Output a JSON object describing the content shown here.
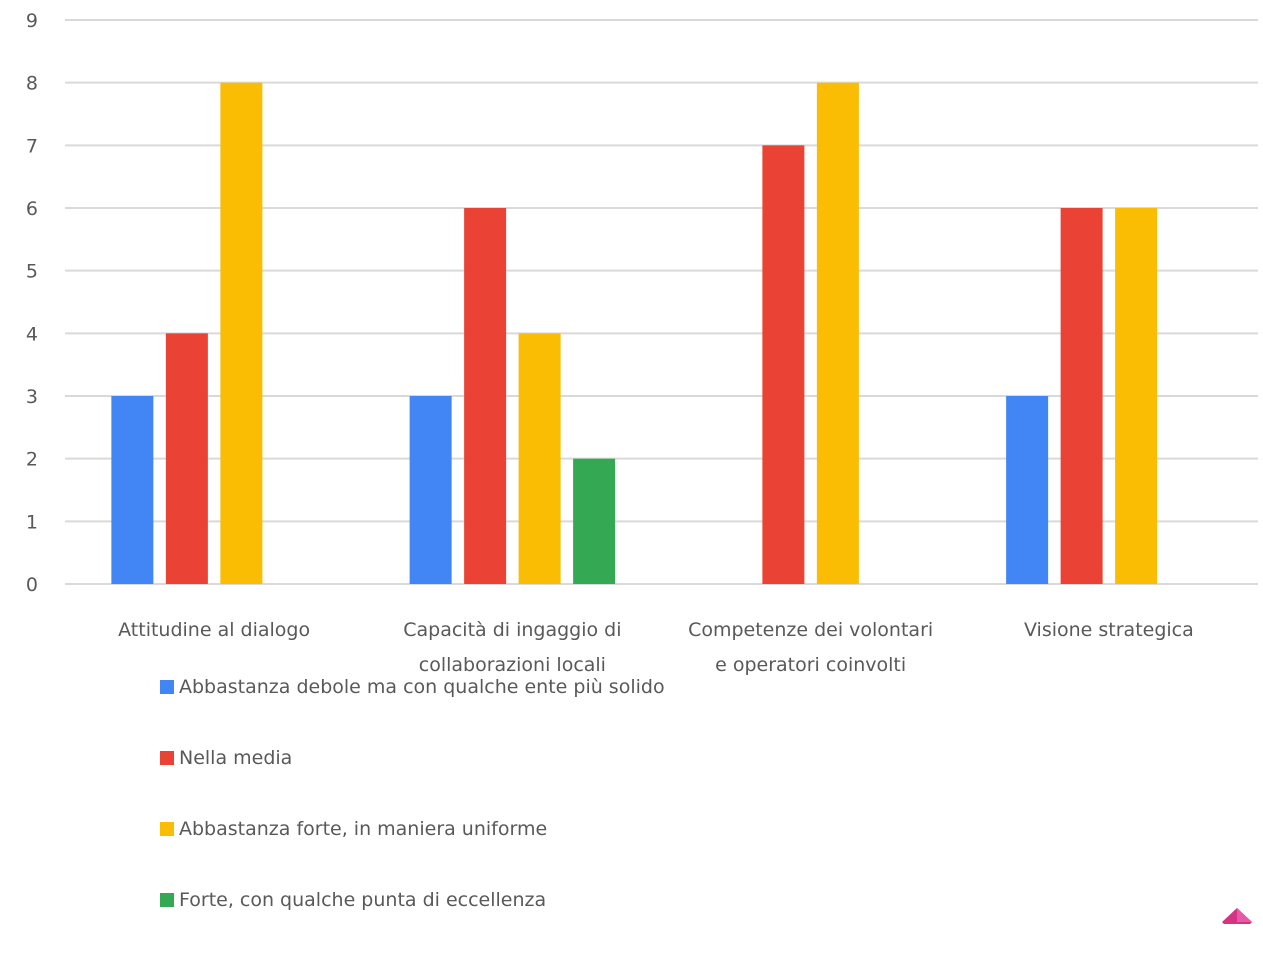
{
  "chart_data": {
    "type": "bar",
    "categories": [
      [
        "Attitudine al dialogo"
      ],
      [
        "Capacità di ingaggio di",
        "collaborazioni locali"
      ],
      [
        "Competenze dei volontari",
        "e operatori coinvolti"
      ],
      [
        "Visione strategica"
      ]
    ],
    "series": [
      {
        "name": "Abbastanza debole ma con qualche ente più solido",
        "color": "#4285f4",
        "values": [
          3,
          3,
          0,
          3
        ]
      },
      {
        "name": "Nella media",
        "color": "#ea4335",
        "values": [
          4,
          6,
          7,
          6
        ]
      },
      {
        "name": "Abbastanza forte, in maniera uniforme",
        "color": "#fbbc04",
        "values": [
          8,
          4,
          8,
          6
        ]
      },
      {
        "name": "Forte, con qualche punta di eccellenza",
        "color": "#34a853",
        "values": [
          0,
          2,
          0,
          0
        ]
      }
    ],
    "yticks": [
      "0",
      "1",
      "2",
      "3",
      "4",
      "5",
      "6",
      "7",
      "8",
      "9"
    ],
    "ylim": [
      0,
      9
    ],
    "grid": true,
    "legend_position": "bottom-left"
  }
}
